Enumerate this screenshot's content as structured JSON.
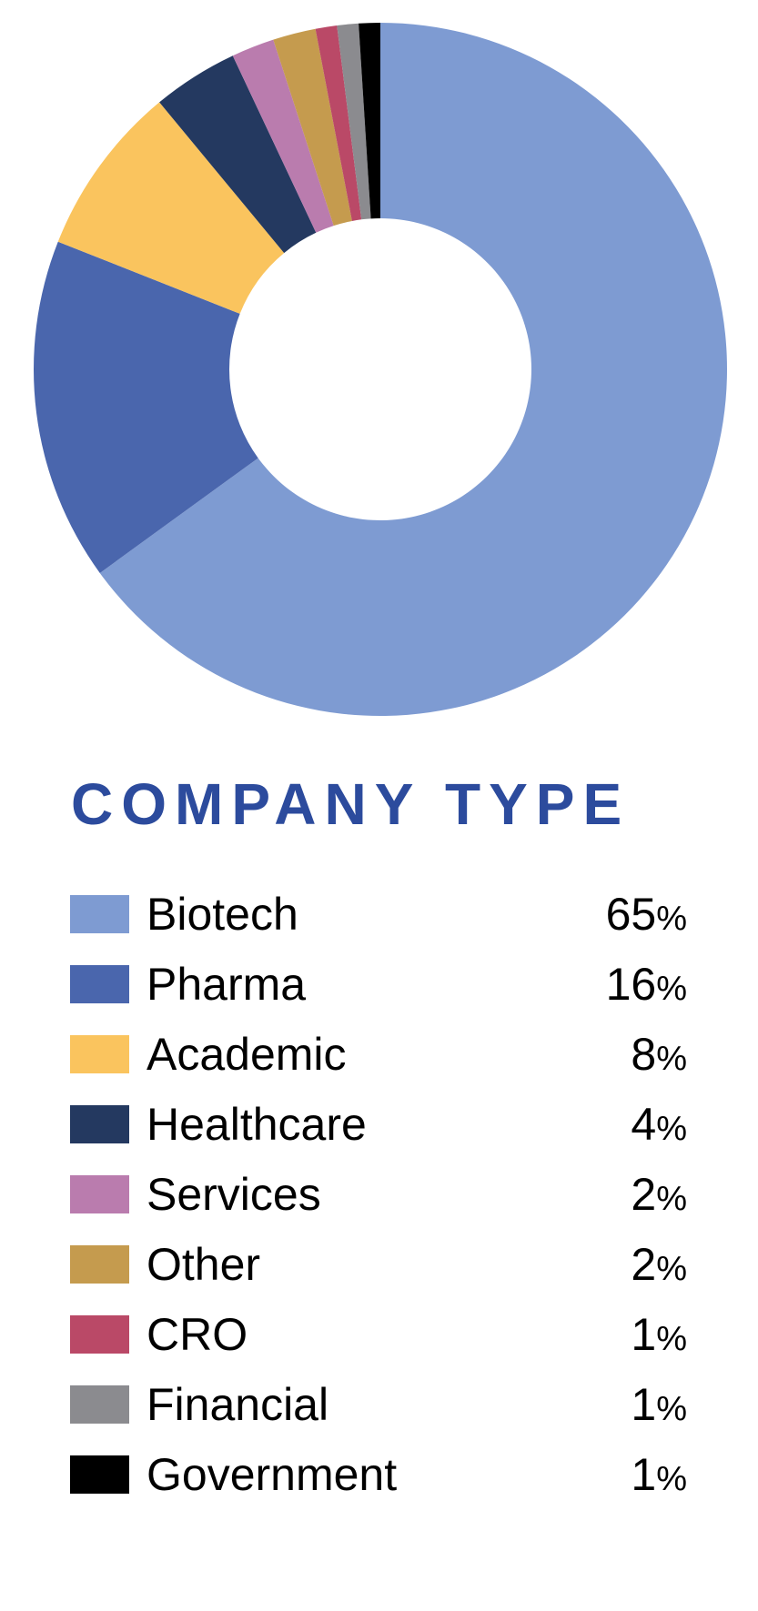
{
  "title": "COMPANY TYPE",
  "title_color": "#2C4B9D",
  "chart_data": {
    "type": "pie",
    "subtype": "donut",
    "title": "COMPANY TYPE",
    "direction": "clockwise",
    "start_angle_deg": 0,
    "inner_radius_ratio": 0.436,
    "legend_position": "bottom",
    "categories": [
      "Biotech",
      "Pharma",
      "Academic",
      "Healthcare",
      "Services",
      "Other",
      "CRO",
      "Financial",
      "Government"
    ],
    "values": [
      65,
      16,
      8,
      4,
      2,
      2,
      1,
      1,
      1
    ],
    "items": [
      {
        "label": "Biotech",
        "value": 65,
        "pct": "65%",
        "color": "#7E9BD2"
      },
      {
        "label": "Pharma",
        "value": 16,
        "pct": "16%",
        "color": "#4A66AD"
      },
      {
        "label": "Academic",
        "value": 8,
        "pct": "8%",
        "color": "#FAC45E"
      },
      {
        "label": "Healthcare",
        "value": 4,
        "pct": "4%",
        "color": "#243960"
      },
      {
        "label": "Services",
        "value": 2,
        "pct": "2%",
        "color": "#BA7CAE"
      },
      {
        "label": "Other",
        "value": 2,
        "pct": "2%",
        "color": "#C59B4E"
      },
      {
        "label": "CRO",
        "value": 1,
        "pct": "1%",
        "color": "#BA4967"
      },
      {
        "label": "Financial",
        "value": 1,
        "pct": "1%",
        "color": "#8B8B8F"
      },
      {
        "label": "Government",
        "value": 1,
        "pct": "1%",
        "color": "#000000"
      }
    ]
  }
}
